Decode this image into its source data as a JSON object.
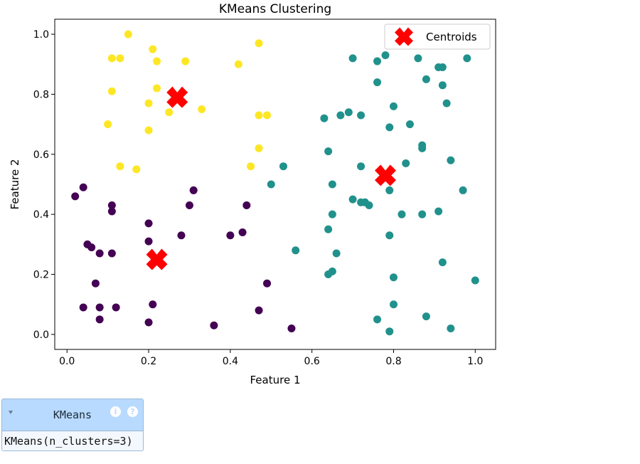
{
  "chart_data": {
    "type": "scatter",
    "title": "KMeans Clustering",
    "xlabel": "Feature 1",
    "ylabel": "Feature 2",
    "xlim": [
      -0.03,
      1.05
    ],
    "ylim": [
      -0.05,
      1.05
    ],
    "xticks": [
      0.0,
      0.2,
      0.4,
      0.6,
      0.8,
      1.0
    ],
    "yticks": [
      0.0,
      0.2,
      0.4,
      0.6,
      0.8,
      1.0
    ],
    "xtick_labels": [
      "0.0",
      "0.2",
      "0.4",
      "0.6",
      "0.8",
      "1.0"
    ],
    "ytick_labels": [
      "0.0",
      "0.2",
      "0.4",
      "0.6",
      "0.8",
      "1.0"
    ],
    "grid": false,
    "legend_position": "top-right",
    "legend": [
      {
        "label": "Centroids",
        "marker": "X",
        "color": "#ff0000"
      }
    ],
    "clusters": [
      {
        "color": "#440154",
        "points": [
          [
            0.02,
            0.46
          ],
          [
            0.04,
            0.49
          ],
          [
            0.05,
            0.3
          ],
          [
            0.06,
            0.29
          ],
          [
            0.08,
            0.27
          ],
          [
            0.11,
            0.27
          ],
          [
            0.11,
            0.43
          ],
          [
            0.11,
            0.41
          ],
          [
            0.07,
            0.17
          ],
          [
            0.04,
            0.09
          ],
          [
            0.08,
            0.09
          ],
          [
            0.08,
            0.05
          ],
          [
            0.12,
            0.09
          ],
          [
            0.2,
            0.04
          ],
          [
            0.21,
            0.1
          ],
          [
            0.2,
            0.37
          ],
          [
            0.2,
            0.31
          ],
          [
            0.28,
            0.33
          ],
          [
            0.3,
            0.43
          ],
          [
            0.31,
            0.48
          ],
          [
            0.36,
            0.03
          ],
          [
            0.4,
            0.33
          ],
          [
            0.43,
            0.34
          ],
          [
            0.44,
            0.43
          ],
          [
            0.47,
            0.08
          ],
          [
            0.49,
            0.17
          ],
          [
            0.55,
            0.02
          ]
        ]
      },
      {
        "color": "#21918c",
        "points": [
          [
            0.53,
            0.56
          ],
          [
            0.5,
            0.5
          ],
          [
            0.56,
            0.28
          ],
          [
            0.63,
            0.72
          ],
          [
            0.64,
            0.61
          ],
          [
            0.65,
            0.5
          ],
          [
            0.65,
            0.4
          ],
          [
            0.64,
            0.35
          ],
          [
            0.66,
            0.27
          ],
          [
            0.65,
            0.21
          ],
          [
            0.64,
            0.2
          ],
          [
            0.67,
            0.73
          ],
          [
            0.69,
            0.74
          ],
          [
            0.72,
            0.73
          ],
          [
            0.7,
            0.92
          ],
          [
            0.7,
            0.45
          ],
          [
            0.72,
            0.44
          ],
          [
            0.73,
            0.44
          ],
          [
            0.74,
            0.43
          ],
          [
            0.72,
            0.56
          ],
          [
            0.76,
            0.84
          ],
          [
            0.76,
            0.91
          ],
          [
            0.78,
            0.93
          ],
          [
            0.79,
            0.69
          ],
          [
            0.8,
            0.76
          ],
          [
            0.79,
            0.48
          ],
          [
            0.79,
            0.33
          ],
          [
            0.8,
            0.19
          ],
          [
            0.8,
            0.1
          ],
          [
            0.79,
            0.01
          ],
          [
            0.76,
            0.05
          ],
          [
            0.82,
            0.4
          ],
          [
            0.83,
            0.57
          ],
          [
            0.84,
            0.7
          ],
          [
            0.86,
            0.92
          ],
          [
            0.87,
            0.62
          ],
          [
            0.87,
            0.63
          ],
          [
            0.87,
            0.4
          ],
          [
            0.88,
            0.06
          ],
          [
            0.88,
            0.85
          ],
          [
            0.91,
            0.41
          ],
          [
            0.91,
            0.89
          ],
          [
            0.92,
            0.89
          ],
          [
            0.92,
            0.83
          ],
          [
            0.93,
            0.77
          ],
          [
            0.94,
            0.58
          ],
          [
            0.92,
            0.24
          ],
          [
            0.94,
            0.02
          ],
          [
            0.97,
            0.48
          ],
          [
            0.98,
            0.92
          ],
          [
            1.0,
            0.18
          ]
        ]
      },
      {
        "color": "#fde725",
        "points": [
          [
            0.15,
            1.0
          ],
          [
            0.11,
            0.92
          ],
          [
            0.13,
            0.92
          ],
          [
            0.21,
            0.95
          ],
          [
            0.22,
            0.91
          ],
          [
            0.29,
            0.91
          ],
          [
            0.11,
            0.81
          ],
          [
            0.22,
            0.82
          ],
          [
            0.2,
            0.77
          ],
          [
            0.25,
            0.74
          ],
          [
            0.1,
            0.7
          ],
          [
            0.2,
            0.68
          ],
          [
            0.33,
            0.75
          ],
          [
            0.42,
            0.9
          ],
          [
            0.47,
            0.97
          ],
          [
            0.47,
            0.73
          ],
          [
            0.49,
            0.73
          ],
          [
            0.47,
            0.62
          ],
          [
            0.45,
            0.56
          ],
          [
            0.13,
            0.56
          ],
          [
            0.17,
            0.55
          ]
        ]
      }
    ],
    "centroids": [
      [
        0.27,
        0.79
      ],
      [
        0.22,
        0.25
      ],
      [
        0.78,
        0.53
      ]
    ]
  },
  "estimator": {
    "name": "KMeans",
    "repr": "KMeans(n_clusters=3)",
    "info_glyph": "i",
    "help_glyph": "?"
  }
}
